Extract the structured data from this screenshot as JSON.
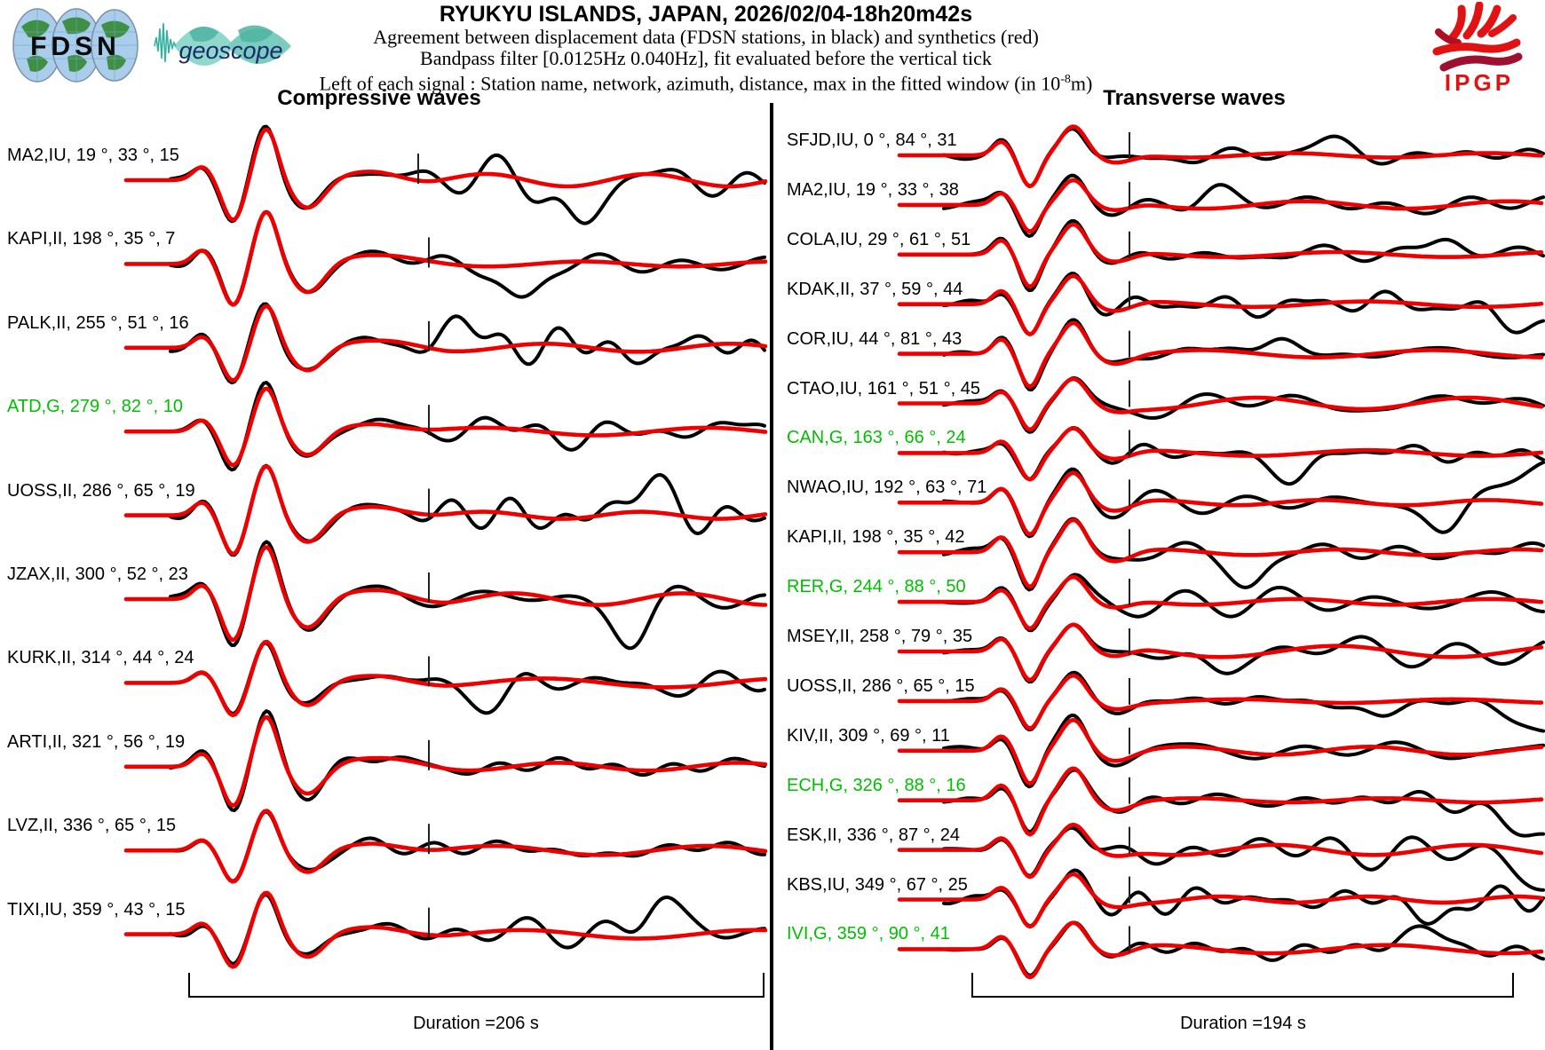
{
  "header": {
    "title": "RYUKYU ISLANDS, JAPAN, 2026/02/04-18h20m42s",
    "line2": "Agreement between displacement data (FDSN stations, in black) and synthetics (red)",
    "line3": "Bandpass filter [0.0125Hz 0.040Hz], fit evaluated before the vertical tick",
    "line4_prefix": "Left of each signal : Station name, network, azimuth, distance, max in the fitted window (in 10",
    "line4_sup": "-8",
    "line4_suffix": "m)"
  },
  "logos": {
    "fdsn": "FDSN",
    "geoscope": "geoscope",
    "ipgp": "IPGP"
  },
  "colors": {
    "data_trace": "#000000",
    "synthetic_trace": "#ee0000",
    "g_network_label": "#00bf00",
    "tick": "#222222",
    "geoscope_teal": "#8fd8cc",
    "ipgp_red": "#e01212"
  },
  "columns": {
    "left": {
      "title": "Compressive waves",
      "duration_label": "Duration =206 s",
      "stations": [
        {
          "station": "MA2",
          "network": "IU",
          "azimuth": 19,
          "distance": 33,
          "max": 15,
          "label": "MA2,IU, 19 °, 33 °, 15"
        },
        {
          "station": "KAPI",
          "network": "II",
          "azimuth": 198,
          "distance": 35,
          "max": 7,
          "label": "KAPI,II, 198 °, 35 °, 7"
        },
        {
          "station": "PALK",
          "network": "II",
          "azimuth": 255,
          "distance": 51,
          "max": 16,
          "label": "PALK,II, 255 °, 51 °, 16"
        },
        {
          "station": "ATD",
          "network": "G",
          "azimuth": 279,
          "distance": 82,
          "max": 10,
          "label": "ATD,G, 279 °, 82 °, 10"
        },
        {
          "station": "UOSS",
          "network": "II",
          "azimuth": 286,
          "distance": 65,
          "max": 19,
          "label": "UOSS,II, 286 °, 65 °, 19"
        },
        {
          "station": "JZAX",
          "network": "II",
          "azimuth": 300,
          "distance": 52,
          "max": 23,
          "label": "JZAX,II, 300 °, 52 °, 23"
        },
        {
          "station": "KURK",
          "network": "II",
          "azimuth": 314,
          "distance": 44,
          "max": 24,
          "label": "KURK,II, 314 °, 44 °, 24"
        },
        {
          "station": "ARTI",
          "network": "II",
          "azimuth": 321,
          "distance": 56,
          "max": 19,
          "label": "ARTI,II, 321 °, 56 °, 19"
        },
        {
          "station": "LVZ",
          "network": "II",
          "azimuth": 336,
          "distance": 65,
          "max": 15,
          "label": "LVZ,II, 336 °, 65 °, 15"
        },
        {
          "station": "TIXI",
          "network": "IU",
          "azimuth": 359,
          "distance": 43,
          "max": 15,
          "label": "TIXI,IU, 359 °, 43 °, 15"
        }
      ]
    },
    "right": {
      "title": "Transverse waves",
      "duration_label": "Duration =194 s",
      "stations": [
        {
          "station": "SFJD",
          "network": "IU",
          "azimuth": 0,
          "distance": 84,
          "max": 31,
          "label": "SFJD,IU, 0 °, 84 °, 31"
        },
        {
          "station": "MA2",
          "network": "IU",
          "azimuth": 19,
          "distance": 33,
          "max": 38,
          "label": "MA2,IU, 19 °, 33 °, 38"
        },
        {
          "station": "COLA",
          "network": "IU",
          "azimuth": 29,
          "distance": 61,
          "max": 51,
          "label": "COLA,IU, 29 °, 61 °, 51"
        },
        {
          "station": "KDAK",
          "network": "II",
          "azimuth": 37,
          "distance": 59,
          "max": 44,
          "label": "KDAK,II, 37 °, 59 °, 44"
        },
        {
          "station": "COR",
          "network": "IU",
          "azimuth": 44,
          "distance": 81,
          "max": 43,
          "label": "COR,IU, 44 °, 81 °, 43"
        },
        {
          "station": "CTAO",
          "network": "IU",
          "azimuth": 161,
          "distance": 51,
          "max": 45,
          "label": "CTAO,IU, 161 °, 51 °, 45"
        },
        {
          "station": "CAN",
          "network": "G",
          "azimuth": 163,
          "distance": 66,
          "max": 24,
          "label": "CAN,G, 163 °, 66 °, 24"
        },
        {
          "station": "NWAO",
          "network": "IU",
          "azimuth": 192,
          "distance": 63,
          "max": 71,
          "label": "NWAO,IU, 192 °, 63 °, 71"
        },
        {
          "station": "KAPI",
          "network": "II",
          "azimuth": 198,
          "distance": 35,
          "max": 42,
          "label": "KAPI,II, 198 °, 35 °, 42"
        },
        {
          "station": "RER",
          "network": "G",
          "azimuth": 244,
          "distance": 88,
          "max": 50,
          "label": "RER,G, 244 °, 88 °, 50"
        },
        {
          "station": "MSEY",
          "network": "II",
          "azimuth": 258,
          "distance": 79,
          "max": 35,
          "label": "MSEY,II, 258 °, 79 °, 35"
        },
        {
          "station": "UOSS",
          "network": "II",
          "azimuth": 286,
          "distance": 65,
          "max": 15,
          "label": "UOSS,II, 286 °, 65 °, 15"
        },
        {
          "station": "KIV",
          "network": "II",
          "azimuth": 309,
          "distance": 69,
          "max": 11,
          "label": "KIV,II, 309 °, 69 °, 11"
        },
        {
          "station": "ECH",
          "network": "G",
          "azimuth": 326,
          "distance": 88,
          "max": 16,
          "label": "ECH,G, 326 °, 88 °, 16"
        },
        {
          "station": "ESK",
          "network": "II",
          "azimuth": 336,
          "distance": 87,
          "max": 24,
          "label": "ESK,II, 336 °, 87 °, 24"
        },
        {
          "station": "KBS",
          "network": "IU",
          "azimuth": 349,
          "distance": 67,
          "max": 25,
          "label": "KBS,IU, 349 °, 67 °, 25"
        },
        {
          "station": "IVI",
          "network": "G",
          "azimuth": 359,
          "distance": 90,
          "max": 41,
          "label": "IVI,G, 359 °, 90 °, 41"
        }
      ]
    }
  },
  "chart_data": {
    "type": "line",
    "description": "Seismogram comparison figure: per station, observed displacement data (black trace) overlaid with synthetic seismogram (red trace); fit evaluated before the short vertical tick on each trace.",
    "event": "RYUKYU ISLANDS, JAPAN, 2026/02/04-18h20m42s",
    "bandpass_filter_hz": [
      0.0125,
      0.04
    ],
    "amplitude_units": "1e-8 m (max in fitted window)",
    "legend": {
      "black": "displacement data (FDSN stations)",
      "red": "synthetics"
    },
    "panels": [
      {
        "wave_type": "Compressive waves",
        "duration_s": 206,
        "stations": [
          {
            "station": "MA2",
            "network": "IU",
            "azimuth_deg": 19,
            "distance_deg": 33,
            "max_1e-8m": 15
          },
          {
            "station": "KAPI",
            "network": "II",
            "azimuth_deg": 198,
            "distance_deg": 35,
            "max_1e-8m": 7
          },
          {
            "station": "PALK",
            "network": "II",
            "azimuth_deg": 255,
            "distance_deg": 51,
            "max_1e-8m": 16
          },
          {
            "station": "ATD",
            "network": "G",
            "azimuth_deg": 279,
            "distance_deg": 82,
            "max_1e-8m": 10
          },
          {
            "station": "UOSS",
            "network": "II",
            "azimuth_deg": 286,
            "distance_deg": 65,
            "max_1e-8m": 19
          },
          {
            "station": "JZAX",
            "network": "II",
            "azimuth_deg": 300,
            "distance_deg": 52,
            "max_1e-8m": 23
          },
          {
            "station": "KURK",
            "network": "II",
            "azimuth_deg": 314,
            "distance_deg": 44,
            "max_1e-8m": 24
          },
          {
            "station": "ARTI",
            "network": "II",
            "azimuth_deg": 321,
            "distance_deg": 56,
            "max_1e-8m": 19
          },
          {
            "station": "LVZ",
            "network": "II",
            "azimuth_deg": 336,
            "distance_deg": 65,
            "max_1e-8m": 15
          },
          {
            "station": "TIXI",
            "network": "IU",
            "azimuth_deg": 359,
            "distance_deg": 43,
            "max_1e-8m": 15
          }
        ]
      },
      {
        "wave_type": "Transverse waves",
        "duration_s": 194,
        "stations": [
          {
            "station": "SFJD",
            "network": "IU",
            "azimuth_deg": 0,
            "distance_deg": 84,
            "max_1e-8m": 31
          },
          {
            "station": "MA2",
            "network": "IU",
            "azimuth_deg": 19,
            "distance_deg": 33,
            "max_1e-8m": 38
          },
          {
            "station": "COLA",
            "network": "IU",
            "azimuth_deg": 29,
            "distance_deg": 61,
            "max_1e-8m": 51
          },
          {
            "station": "KDAK",
            "network": "II",
            "azimuth_deg": 37,
            "distance_deg": 59,
            "max_1e-8m": 44
          },
          {
            "station": "COR",
            "network": "IU",
            "azimuth_deg": 44,
            "distance_deg": 81,
            "max_1e-8m": 43
          },
          {
            "station": "CTAO",
            "network": "IU",
            "azimuth_deg": 161,
            "distance_deg": 51,
            "max_1e-8m": 45
          },
          {
            "station": "CAN",
            "network": "G",
            "azimuth_deg": 163,
            "distance_deg": 66,
            "max_1e-8m": 24
          },
          {
            "station": "NWAO",
            "network": "IU",
            "azimuth_deg": 192,
            "distance_deg": 63,
            "max_1e-8m": 71
          },
          {
            "station": "KAPI",
            "network": "II",
            "azimuth_deg": 198,
            "distance_deg": 35,
            "max_1e-8m": 42
          },
          {
            "station": "RER",
            "network": "G",
            "azimuth_deg": 244,
            "distance_deg": 88,
            "max_1e-8m": 50
          },
          {
            "station": "MSEY",
            "network": "II",
            "azimuth_deg": 258,
            "distance_deg": 79,
            "max_1e-8m": 35
          },
          {
            "station": "UOSS",
            "network": "II",
            "azimuth_deg": 286,
            "distance_deg": 65,
            "max_1e-8m": 15
          },
          {
            "station": "KIV",
            "network": "II",
            "azimuth_deg": 309,
            "distance_deg": 69,
            "max_1e-8m": 11
          },
          {
            "station": "ECH",
            "network": "G",
            "azimuth_deg": 326,
            "distance_deg": 88,
            "max_1e-8m": 16
          },
          {
            "station": "ESK",
            "network": "II",
            "azimuth_deg": 336,
            "distance_deg": 87,
            "max_1e-8m": 24
          },
          {
            "station": "KBS",
            "network": "IU",
            "azimuth_deg": 349,
            "distance_deg": 67,
            "max_1e-8m": 25
          },
          {
            "station": "IVI",
            "network": "G",
            "azimuth_deg": 359,
            "distance_deg": 90,
            "max_1e-8m": 41
          }
        ]
      }
    ]
  }
}
